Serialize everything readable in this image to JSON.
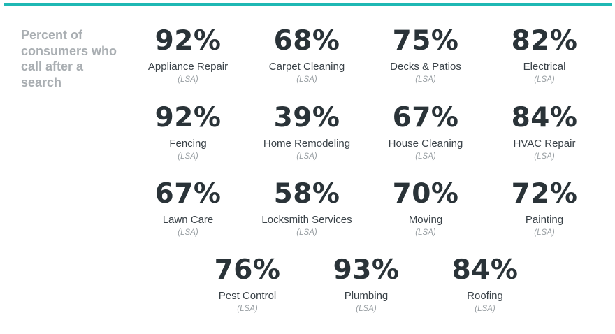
{
  "heading": "Percent of consumers who call after a search",
  "accent_color": "#1fb8b4",
  "items": [
    {
      "percent": "92%",
      "label": "Appliance Repair",
      "note": "(LSA)"
    },
    {
      "percent": "68%",
      "label": "Carpet Cleaning",
      "note": "(LSA)"
    },
    {
      "percent": "75%",
      "label": "Decks & Patios",
      "note": "(LSA)"
    },
    {
      "percent": "82%",
      "label": "Electrical",
      "note": "(LSA)"
    },
    {
      "percent": "92%",
      "label": "Fencing",
      "note": "(LSA)"
    },
    {
      "percent": "39%",
      "label": "Home Remodeling",
      "note": "(LSA)"
    },
    {
      "percent": "67%",
      "label": "House Cleaning",
      "note": "(LSA)"
    },
    {
      "percent": "84%",
      "label": "HVAC Repair",
      "note": "(LSA)"
    },
    {
      "percent": "67%",
      "label": "Lawn Care",
      "note": "(LSA)"
    },
    {
      "percent": "58%",
      "label": "Locksmith Services",
      "note": "(LSA)"
    },
    {
      "percent": "70%",
      "label": "Moving",
      "note": "(LSA)"
    },
    {
      "percent": "72%",
      "label": "Painting",
      "note": "(LSA)"
    },
    {
      "percent": "76%",
      "label": "Pest Control",
      "note": "(LSA)"
    },
    {
      "percent": "93%",
      "label": "Plumbing",
      "note": "(LSA)"
    },
    {
      "percent": "84%",
      "label": "Roofing",
      "note": "(LSA)"
    }
  ]
}
